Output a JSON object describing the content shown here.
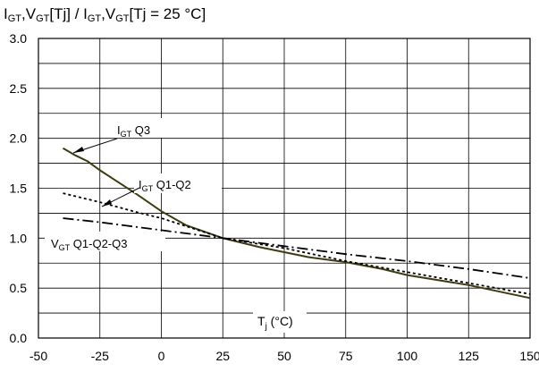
{
  "chart_data": {
    "type": "line",
    "title": {
      "parts": [
        {
          "text": "I",
          "sub": false
        },
        {
          "text": "GT",
          "sub": true
        },
        {
          "text": ",V",
          "sub": false
        },
        {
          "text": "GT",
          "sub": true
        },
        {
          "text": "[Tj] / I",
          "sub": false
        },
        {
          "text": "GT",
          "sub": true
        },
        {
          "text": ",V",
          "sub": false
        },
        {
          "text": "GT",
          "sub": true
        },
        {
          "text": "[Tj = 25 °C]",
          "sub": false
        }
      ]
    },
    "xlabel": {
      "main": "T",
      "sub": "j",
      "tail": " (°C)"
    },
    "xlim": [
      -50,
      150
    ],
    "ylim": [
      0,
      3.0
    ],
    "xticks": [
      -50,
      -25,
      0,
      25,
      50,
      75,
      100,
      125,
      150
    ],
    "yticks": [
      0,
      0.5,
      1.0,
      1.5,
      2.0,
      2.5,
      3.0
    ],
    "xtick_labels": [
      "-50",
      "-25",
      "0",
      "25",
      "50",
      "75",
      "100",
      "125",
      "150"
    ],
    "ytick_labels": [
      "0.0",
      "0.5",
      "1.0",
      "1.5",
      "2.0",
      "2.5",
      "3.0"
    ],
    "minor_grid_y_step": 0.25,
    "grid": true,
    "series": [
      {
        "name": "Q3",
        "label_main": "I",
        "label_sub": "GT",
        "label_tail": " Q3",
        "style": "solid",
        "color": "#3d3b10",
        "x": [
          -40,
          -35,
          -30,
          -25,
          -20,
          -10,
          0,
          10,
          25,
          40,
          50,
          60,
          75,
          90,
          100,
          125,
          150
        ],
        "y": [
          1.9,
          1.83,
          1.77,
          1.68,
          1.6,
          1.44,
          1.27,
          1.13,
          1.0,
          0.91,
          0.86,
          0.81,
          0.76,
          0.69,
          0.63,
          0.53,
          0.4
        ]
      },
      {
        "name": "Q1-Q2",
        "label_main": "I",
        "label_sub": "GT",
        "label_tail": " Q1-Q2",
        "style": "dotted",
        "color": "#000000",
        "x": [
          -40,
          -25,
          -10,
          0,
          10,
          25,
          50,
          75,
          100,
          125,
          150
        ],
        "y": [
          1.45,
          1.36,
          1.26,
          1.2,
          1.12,
          1.0,
          0.9,
          0.77,
          0.66,
          0.55,
          0.44
        ]
      },
      {
        "name": "VGT Q1-Q2-Q3",
        "label_main": "V",
        "label_sub": "GT",
        "label_tail": " Q1-Q2-Q3",
        "style": "dashdot",
        "color": "#000000",
        "x": [
          -40,
          -25,
          0,
          25,
          50,
          75,
          100,
          125,
          150
        ],
        "y": [
          1.2,
          1.16,
          1.08,
          1.0,
          0.92,
          0.84,
          0.77,
          0.69,
          0.6
        ]
      }
    ]
  }
}
